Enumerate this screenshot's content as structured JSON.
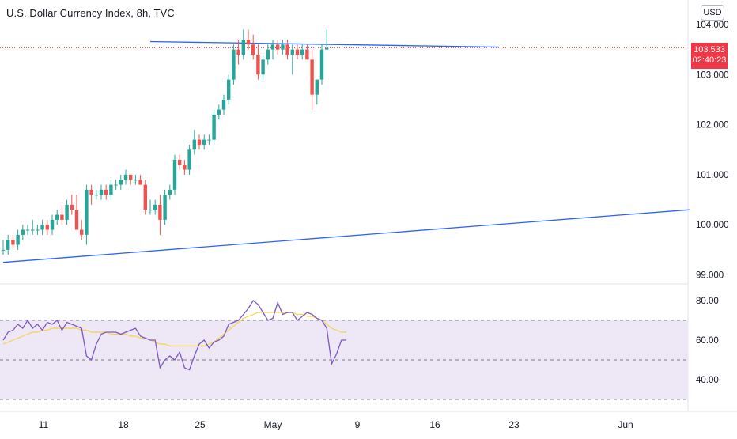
{
  "header": {
    "title": "U.S. Dollar Currency Index, 8h, TVC",
    "currency": "USD"
  },
  "last_price": {
    "value": "103.533",
    "countdown": "02:40:23",
    "color": "#f23645"
  },
  "colors": {
    "up": "#26a69a",
    "down": "#ef5350",
    "trend": "#2962ff",
    "rsi": "#7e57c2",
    "rsi_ma": "#f7d34a",
    "rsi_band": "#ede7f6"
  },
  "chart_data": [
    {
      "type": "candlestick",
      "title": "U.S. Dollar Currency Index, 8h, TVC",
      "ylim": [
        98.8,
        104.2
      ],
      "y_ticks": [
        "104.000",
        "103.000",
        "102.000",
        "101.000",
        "100.000",
        "99.000"
      ],
      "x_ticks": [
        "11",
        "18",
        "25",
        "May",
        "9",
        "16",
        "23",
        "Jun"
      ],
      "candles": [
        [
          99.5,
          99.7,
          99.4,
          99.5
        ],
        [
          99.5,
          99.8,
          99.4,
          99.7
        ],
        [
          99.7,
          99.8,
          99.5,
          99.6
        ],
        [
          99.6,
          99.9,
          99.5,
          99.8
        ],
        [
          99.8,
          100.0,
          99.7,
          99.9
        ],
        [
          99.9,
          100.0,
          99.8,
          99.9
        ],
        [
          99.9,
          100.1,
          99.8,
          99.9
        ],
        [
          99.9,
          100.0,
          99.8,
          99.9
        ],
        [
          99.9,
          100.1,
          99.8,
          100.0
        ],
        [
          100.0,
          100.1,
          99.8,
          99.9
        ],
        [
          99.9,
          100.2,
          99.8,
          100.1
        ],
        [
          100.1,
          100.3,
          100.0,
          100.2
        ],
        [
          100.2,
          100.4,
          100.0,
          100.1
        ],
        [
          100.1,
          100.5,
          100.0,
          100.4
        ],
        [
          100.4,
          100.6,
          100.2,
          100.3
        ],
        [
          100.3,
          100.6,
          99.9,
          99.9
        ],
        [
          99.9,
          100.1,
          99.7,
          99.8
        ],
        [
          99.8,
          100.8,
          99.6,
          100.7
        ],
        [
          100.7,
          100.8,
          100.4,
          100.6
        ],
        [
          100.6,
          100.7,
          100.5,
          100.6
        ],
        [
          100.6,
          100.8,
          100.5,
          100.7
        ],
        [
          100.7,
          100.8,
          100.5,
          100.6
        ],
        [
          100.6,
          100.9,
          100.5,
          100.8
        ],
        [
          100.8,
          100.9,
          100.7,
          100.8
        ],
        [
          100.8,
          101.0,
          100.7,
          100.9
        ],
        [
          100.9,
          101.1,
          100.8,
          101.0
        ],
        [
          101.0,
          101.0,
          100.8,
          100.9
        ],
        [
          100.9,
          101.0,
          100.8,
          100.9
        ],
        [
          100.9,
          101.0,
          100.8,
          100.8
        ],
        [
          100.8,
          100.9,
          100.2,
          100.3
        ],
        [
          100.3,
          100.5,
          100.2,
          100.3
        ],
        [
          100.3,
          100.5,
          100.2,
          100.4
        ],
        [
          100.4,
          100.6,
          99.8,
          100.1
        ],
        [
          100.1,
          100.7,
          100.0,
          100.6
        ],
        [
          100.6,
          100.8,
          100.5,
          100.7
        ],
        [
          100.7,
          101.4,
          100.6,
          101.3
        ],
        [
          101.3,
          101.4,
          101.1,
          101.2
        ],
        [
          101.2,
          101.3,
          101.0,
          101.1
        ],
        [
          101.1,
          101.6,
          101.0,
          101.5
        ],
        [
          101.5,
          101.9,
          101.4,
          101.7
        ],
        [
          101.7,
          101.8,
          101.5,
          101.6
        ],
        [
          101.6,
          101.8,
          101.5,
          101.7
        ],
        [
          101.7,
          101.8,
          101.6,
          101.7
        ],
        [
          101.7,
          102.3,
          101.6,
          102.2
        ],
        [
          102.2,
          102.4,
          102.1,
          102.3
        ],
        [
          102.3,
          102.6,
          102.2,
          102.5
        ],
        [
          102.5,
          103.0,
          102.4,
          102.9
        ],
        [
          102.9,
          103.6,
          102.8,
          103.5
        ],
        [
          103.5,
          103.7,
          103.2,
          103.4
        ],
        [
          103.4,
          103.9,
          103.3,
          103.7
        ],
        [
          103.7,
          103.9,
          103.5,
          103.6
        ],
        [
          103.6,
          103.8,
          103.3,
          103.4
        ],
        [
          103.4,
          103.6,
          102.9,
          103.0
        ],
        [
          103.0,
          103.4,
          102.9,
          103.3
        ],
        [
          103.3,
          103.6,
          103.2,
          103.5
        ],
        [
          103.5,
          103.7,
          103.3,
          103.6
        ],
        [
          103.6,
          103.7,
          103.4,
          103.5
        ],
        [
          103.5,
          103.7,
          103.4,
          103.6
        ],
        [
          103.6,
          103.7,
          103.3,
          103.4
        ],
        [
          103.4,
          103.6,
          103.0,
          103.5
        ],
        [
          103.5,
          103.6,
          103.3,
          103.4
        ],
        [
          103.4,
          103.6,
          103.3,
          103.5
        ],
        [
          103.5,
          103.6,
          103.3,
          103.3
        ],
        [
          103.3,
          103.5,
          102.3,
          102.6
        ],
        [
          102.6,
          102.9,
          102.4,
          102.9
        ],
        [
          102.9,
          103.6,
          102.8,
          103.5
        ],
        [
          103.5,
          103.9,
          103.5,
          103.533
        ]
      ],
      "trendlines": [
        {
          "from": [
            0,
            99.25
          ],
          "to": [
            140,
            100.3
          ]
        },
        {
          "from": [
            30,
            103.66
          ],
          "to": [
            101,
            103.55
          ]
        }
      ],
      "last_price_line": 103.533
    },
    {
      "type": "line",
      "title": "",
      "ylim": [
        31,
        84
      ],
      "y_ticks": [
        "80.00",
        "60.00",
        "40.00"
      ],
      "bands": [
        70,
        50,
        30
      ],
      "series": [
        {
          "values": [
            60,
            64,
            65,
            68,
            66,
            70,
            66,
            68,
            65,
            69,
            68,
            70,
            65,
            69,
            68,
            67,
            66,
            52,
            50,
            58,
            63,
            64,
            64,
            64,
            63,
            64,
            65,
            66,
            62,
            61,
            60,
            60,
            46,
            50,
            52,
            50,
            54,
            46,
            45,
            52,
            58,
            60,
            56,
            59,
            60,
            62,
            68,
            69,
            70,
            73,
            76,
            80,
            78,
            74,
            70,
            71,
            79,
            73,
            74,
            74,
            70,
            72,
            74,
            73,
            71,
            70,
            66,
            48,
            53,
            60,
            60
          ]
        },
        {
          "values": [
            58,
            59,
            60,
            61,
            62,
            63,
            64,
            64,
            65,
            65,
            66,
            66,
            66,
            66,
            66,
            66,
            65,
            65,
            64,
            64,
            64,
            64,
            63,
            63,
            63,
            63,
            62,
            62,
            61,
            61,
            60,
            59,
            58,
            58,
            57,
            57,
            57,
            57,
            57,
            57,
            57,
            57,
            58,
            59,
            61,
            63,
            65,
            67,
            69,
            71,
            72,
            73,
            74,
            74,
            74,
            74,
            74,
            74,
            74,
            74,
            73,
            73,
            72,
            72,
            71,
            70,
            68,
            66,
            65,
            64,
            64
          ]
        }
      ]
    }
  ]
}
